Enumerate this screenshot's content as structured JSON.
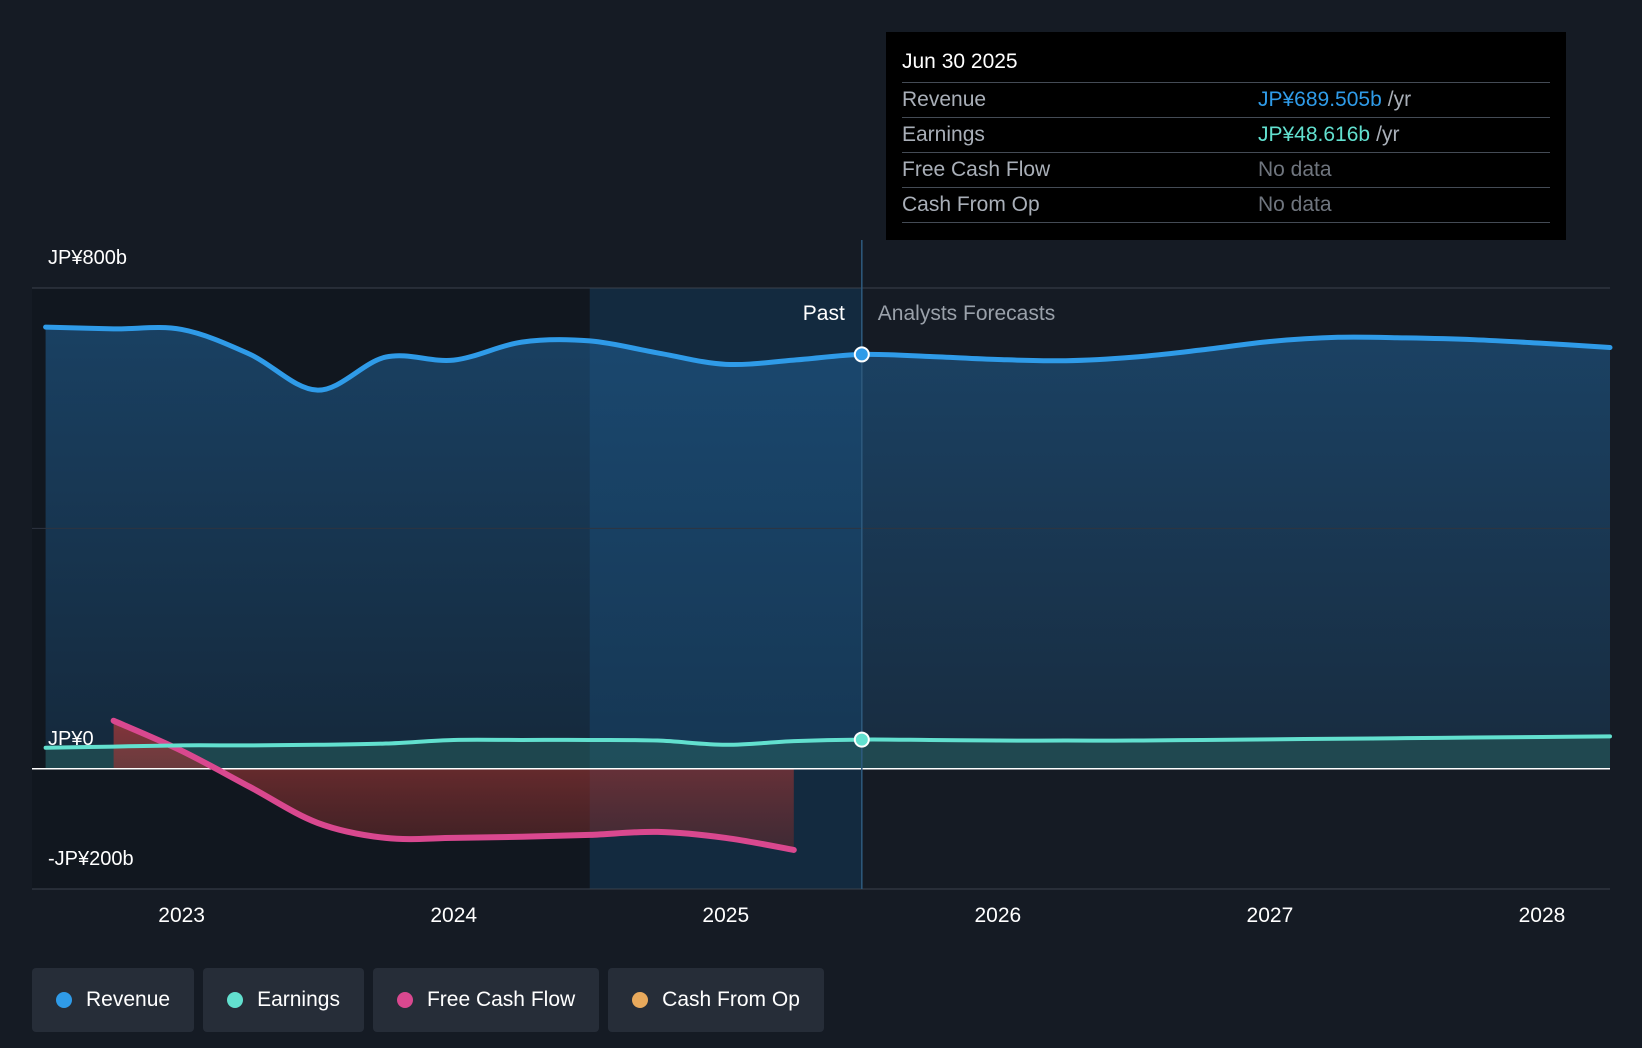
{
  "chart_data": {
    "type": "line",
    "y_axis": {
      "min": -200,
      "max": 800,
      "unit": "JP¥ b",
      "tick_labels": [
        "JP¥800b",
        "JP¥0",
        "-JP¥200b"
      ],
      "ticks": [
        800,
        0,
        -200
      ]
    },
    "x_axis": {
      "min": 2022.45,
      "max": 2028.25,
      "tick_labels": [
        "2023",
        "2024",
        "2025",
        "2026",
        "2027",
        "2028"
      ],
      "ticks": [
        2023,
        2024,
        2025,
        2026,
        2027,
        2028
      ]
    },
    "past_label": "Past",
    "forecast_label": "Analysts Forecasts",
    "divider_x": 2025.5,
    "highlight_start_x": 2024.5,
    "series": [
      {
        "name": "Revenue",
        "color": "#2f9be8",
        "points": [
          [
            2022.5,
            735
          ],
          [
            2022.75,
            732
          ],
          [
            2023.0,
            731
          ],
          [
            2023.25,
            690
          ],
          [
            2023.5,
            630
          ],
          [
            2023.75,
            685
          ],
          [
            2024.0,
            680
          ],
          [
            2024.25,
            710
          ],
          [
            2024.5,
            712
          ],
          [
            2024.75,
            692
          ],
          [
            2025.0,
            673
          ],
          [
            2025.25,
            680
          ],
          [
            2025.5,
            689.505
          ],
          [
            2025.75,
            686
          ],
          [
            2026.0,
            681
          ],
          [
            2026.25,
            679
          ],
          [
            2026.5,
            685
          ],
          [
            2026.75,
            697
          ],
          [
            2027.0,
            711
          ],
          [
            2027.25,
            718
          ],
          [
            2027.5,
            717
          ],
          [
            2027.75,
            714
          ],
          [
            2028.0,
            708
          ],
          [
            2028.25,
            701
          ]
        ]
      },
      {
        "name": "Earnings",
        "color": "#62e0cf",
        "points": [
          [
            2022.5,
            35
          ],
          [
            2022.75,
            37
          ],
          [
            2023.0,
            39
          ],
          [
            2023.25,
            39
          ],
          [
            2023.5,
            40
          ],
          [
            2023.75,
            42
          ],
          [
            2024.0,
            48
          ],
          [
            2024.25,
            48
          ],
          [
            2024.5,
            48
          ],
          [
            2024.75,
            47
          ],
          [
            2025.0,
            40
          ],
          [
            2025.25,
            46
          ],
          [
            2025.5,
            48.616
          ],
          [
            2025.75,
            48
          ],
          [
            2026.0,
            47
          ],
          [
            2026.25,
            47
          ],
          [
            2026.5,
            47
          ],
          [
            2026.75,
            48
          ],
          [
            2027.0,
            49
          ],
          [
            2027.25,
            50
          ],
          [
            2027.5,
            51
          ],
          [
            2027.75,
            52
          ],
          [
            2028.0,
            53
          ],
          [
            2028.25,
            54
          ]
        ]
      },
      {
        "name": "Free Cash Flow",
        "color": "#d9488f",
        "points": [
          [
            2022.75,
            80
          ],
          [
            2023.0,
            30
          ],
          [
            2023.25,
            -30
          ],
          [
            2023.5,
            -90
          ],
          [
            2023.75,
            -115
          ],
          [
            2024.0,
            -115
          ],
          [
            2024.25,
            -113
          ],
          [
            2024.5,
            -110
          ],
          [
            2024.75,
            -105
          ],
          [
            2025.0,
            -115
          ],
          [
            2025.25,
            -135
          ]
        ]
      },
      {
        "name": "Cash From Op",
        "color": "#e8a95c",
        "points": [
          [
            2022.75,
            80
          ],
          [
            2023.0,
            30
          ],
          [
            2023.25,
            -30
          ],
          [
            2023.5,
            -90
          ],
          [
            2023.75,
            -115
          ],
          [
            2024.0,
            -115
          ],
          [
            2024.25,
            -113
          ],
          [
            2024.5,
            -110
          ],
          [
            2024.75,
            -105
          ],
          [
            2025.0,
            -115
          ],
          [
            2025.25,
            -135
          ]
        ]
      }
    ]
  },
  "tooltip": {
    "date": "Jun 30 2025",
    "rows": [
      {
        "label": "Revenue",
        "value": "JP¥689.505b",
        "unit": "/yr",
        "color": "#2f9be8"
      },
      {
        "label": "Earnings",
        "value": "JP¥48.616b",
        "unit": "/yr",
        "color": "#62e0cf"
      },
      {
        "label": "Free Cash Flow",
        "value": "No data",
        "unit": ""
      },
      {
        "label": "Cash From Op",
        "value": "No data",
        "unit": ""
      }
    ]
  },
  "legend": [
    {
      "label": "Revenue",
      "color": "#2f9be8"
    },
    {
      "label": "Earnings",
      "color": "#62e0cf"
    },
    {
      "label": "Free Cash Flow",
      "color": "#d9488f"
    },
    {
      "label": "Cash From Op",
      "color": "#e8a95c"
    }
  ]
}
